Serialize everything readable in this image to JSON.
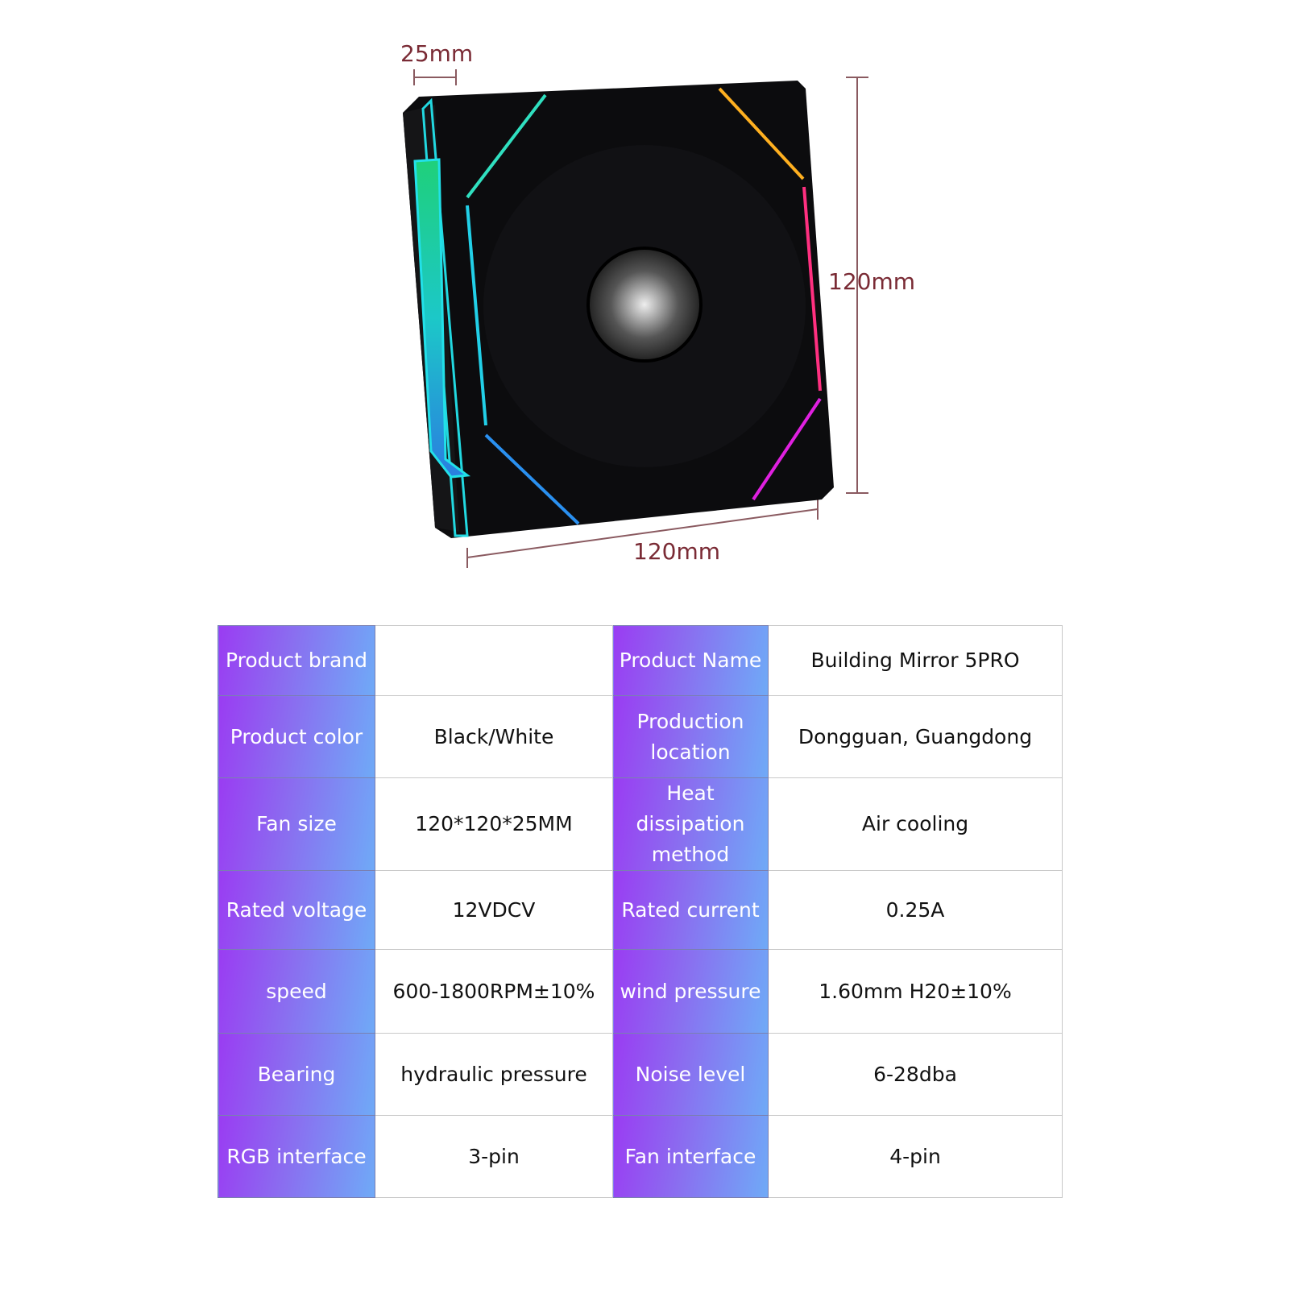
{
  "dimensions": {
    "depth": "25mm",
    "height": "120mm",
    "width": "120mm"
  },
  "colors": {
    "label_gradient_start": "#9a3cf2",
    "label_gradient_end": "#6faaf7",
    "dimension_text": "#7a2b35"
  },
  "specs": [
    {
      "k1": "Product brand",
      "v1": "",
      "k2": "Product Name",
      "v2": "Building Mirror 5PRO"
    },
    {
      "k1": "Product color",
      "v1": "Black/White",
      "k2": "Production location",
      "v2": "Dongguan, Guangdong"
    },
    {
      "k1": "Fan size",
      "v1": "120*120*25MM",
      "k2": "Heat dissipation method",
      "v2": "Air cooling"
    },
    {
      "k1": "Rated voltage",
      "v1": "12VDCV",
      "k2": "Rated current",
      "v2": "0.25A"
    },
    {
      "k1": "speed",
      "v1": "600-1800RPM±10%",
      "k2": "wind pressure",
      "v2": "1.60mm H20±10%"
    },
    {
      "k1": "Bearing",
      "v1": "hydraulic pressure",
      "k2": "Noise level",
      "v2": "6-28dba"
    },
    {
      "k1": "RGB interface",
      "v1": "3-pin",
      "k2": "Fan interface",
      "v2": "4-pin"
    }
  ]
}
